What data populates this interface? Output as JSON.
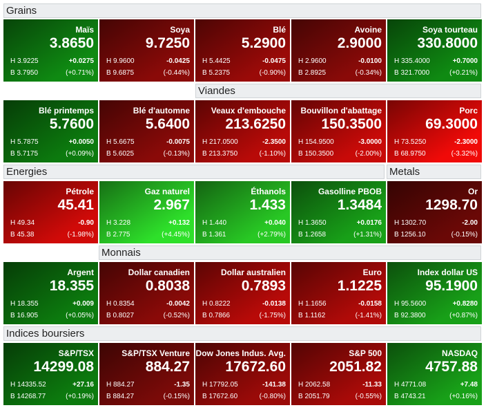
{
  "sections": [
    {
      "title": "Grains"
    },
    {
      "title": "Viandes"
    },
    {
      "title": "Energies"
    },
    {
      "title": "Metals"
    },
    {
      "title": "Monnais"
    },
    {
      "title": "Indices boursiers"
    }
  ],
  "tiles": [
    {
      "name": "Maïs",
      "price": "3.8650",
      "high": "H 3.9225",
      "low": "B 3.7950",
      "change": "+0.0275",
      "pct": "(+0.71%)",
      "color": "#0f8a12"
    },
    {
      "name": "Soya",
      "price": "9.7250",
      "high": "H 9.9600",
      "low": "B 9.6875",
      "change": "-0.0425",
      "pct": "(-0.44%)",
      "color": "#8a0a08"
    },
    {
      "name": "Blé",
      "price": "5.2900",
      "high": "H 5.4425",
      "low": "B 5.2375",
      "change": "-0.0475",
      "pct": "(-0.90%)",
      "color": "#9a0a08"
    },
    {
      "name": "Avoine",
      "price": "2.9000",
      "high": "H 2.9600",
      "low": "B 2.8925",
      "change": "-0.0100",
      "pct": "(-0.34%)",
      "color": "#8a0a08"
    },
    {
      "name": "Soya tourteau",
      "price": "330.8000",
      "high": "H 335.4000",
      "low": "B 321.7000",
      "change": "+0.7000",
      "pct": "(+0.21%)",
      "color": "#0f8a12"
    },
    {
      "name": "Blé printemps",
      "price": "5.7600",
      "high": "H 5.7875",
      "low": "B 5.7175",
      "change": "+0.0050",
      "pct": "(+0.09%)",
      "color": "#0c7a0e"
    },
    {
      "name": "Blé d'automne",
      "price": "5.6400",
      "high": "H 5.6675",
      "low": "B 5.6025",
      "change": "-0.0075",
      "pct": "(-0.13%)",
      "color": "#8a0a08"
    },
    {
      "name": "Veaux d'embouche",
      "price": "213.6250",
      "high": "H 217.0500",
      "low": "B 213.3750",
      "change": "-2.3500",
      "pct": "(-1.10%)",
      "color": "#b80a08"
    },
    {
      "name": "Bouvillon d'abattage",
      "price": "150.3500",
      "high": "H 154.9500",
      "low": "B 150.3500",
      "change": "-3.0000",
      "pct": "(-2.00%)",
      "color": "#c80a08"
    },
    {
      "name": "Porc",
      "price": "69.3000",
      "high": "H 73.5250",
      "low": "B 68.9750",
      "change": "-2.3000",
      "pct": "(-3.32%)",
      "color": "#f00a08"
    },
    {
      "name": "Pétrole",
      "price": "45.41",
      "high": "H 49.34",
      "low": "B 45.38",
      "change": "-0.90",
      "pct": "(-1.98%)",
      "color": "#d00a08"
    },
    {
      "name": "Gaz naturel",
      "price": "2.967",
      "high": "H 3.228",
      "low": "B 2.775",
      "change": "+0.132",
      "pct": "(+4.45%)",
      "color": "#2ee02a"
    },
    {
      "name": "Éthanols",
      "price": "1.433",
      "high": "H 1.440",
      "low": "B 1.361",
      "change": "+0.040",
      "pct": "(+2.79%)",
      "color": "#28c824"
    },
    {
      "name": "Gasolline PBOB",
      "price": "1.3484",
      "high": "H 1.3650",
      "low": "B 1.2658",
      "change": "+0.0176",
      "pct": "(+1.31%)",
      "color": "#18a018"
    },
    {
      "name": "Or",
      "price": "1298.70",
      "high": "H 1302.70",
      "low": "B 1256.10",
      "change": "-2.00",
      "pct": "(-0.15%)",
      "color": "#6a0806"
    },
    {
      "name": "Argent",
      "price": "18.355",
      "high": "H 18.355",
      "low": "B 16.905",
      "change": "+0.009",
      "pct": "(+0.05%)",
      "color": "#0c7a0e"
    },
    {
      "name": "Dollar canadien",
      "price": "0.8038",
      "high": "H 0.8354",
      "low": "B 0.8027",
      "change": "-0.0042",
      "pct": "(-0.52%)",
      "color": "#8a0a08"
    },
    {
      "name": "Dollar australien",
      "price": "0.7893",
      "high": "H 0.8222",
      "low": "B 0.7866",
      "change": "-0.0138",
      "pct": "(-1.75%)",
      "color": "#b80a08"
    },
    {
      "name": "Euro",
      "price": "1.1225",
      "high": "H 1.1656",
      "low": "B 1.1162",
      "change": "-0.0158",
      "pct": "(-1.41%)",
      "color": "#b00a08"
    },
    {
      "name": "Index dollar US",
      "price": "95.1900",
      "high": "H 95.5600",
      "low": "B 92.3800",
      "change": "+0.8280",
      "pct": "(+0.87%)",
      "color": "#18a018"
    },
    {
      "name": "S&P/TSX",
      "price": "14299.08",
      "high": "H 14335.52",
      "low": "B 14268.77",
      "change": "+27.16",
      "pct": "(+0.19%)",
      "color": "#0c7a0e"
    },
    {
      "name": "S&P/TSX Venture",
      "price": "884.27",
      "high": "H 884.27",
      "low": "B 884.27",
      "change": "-1.35",
      "pct": "(-0.15%)",
      "color": "#7a0a08"
    },
    {
      "name": "Dow Jones Indus. Avg.",
      "price": "17672.60",
      "high": "H 17792.05",
      "low": "B 17672.60",
      "change": "-141.38",
      "pct": "(-0.80%)",
      "color": "#9a0a08"
    },
    {
      "name": "S&P 500",
      "price": "2051.82",
      "high": "H 2062.58",
      "low": "B 2051.79",
      "change": "-11.33",
      "pct": "(-0.55%)",
      "color": "#a80a08"
    },
    {
      "name": "NASDAQ",
      "price": "4757.88",
      "high": "H 4771.08",
      "low": "B 4743.21",
      "change": "+7.48",
      "pct": "(+0.16%)",
      "color": "#18a018"
    }
  ]
}
